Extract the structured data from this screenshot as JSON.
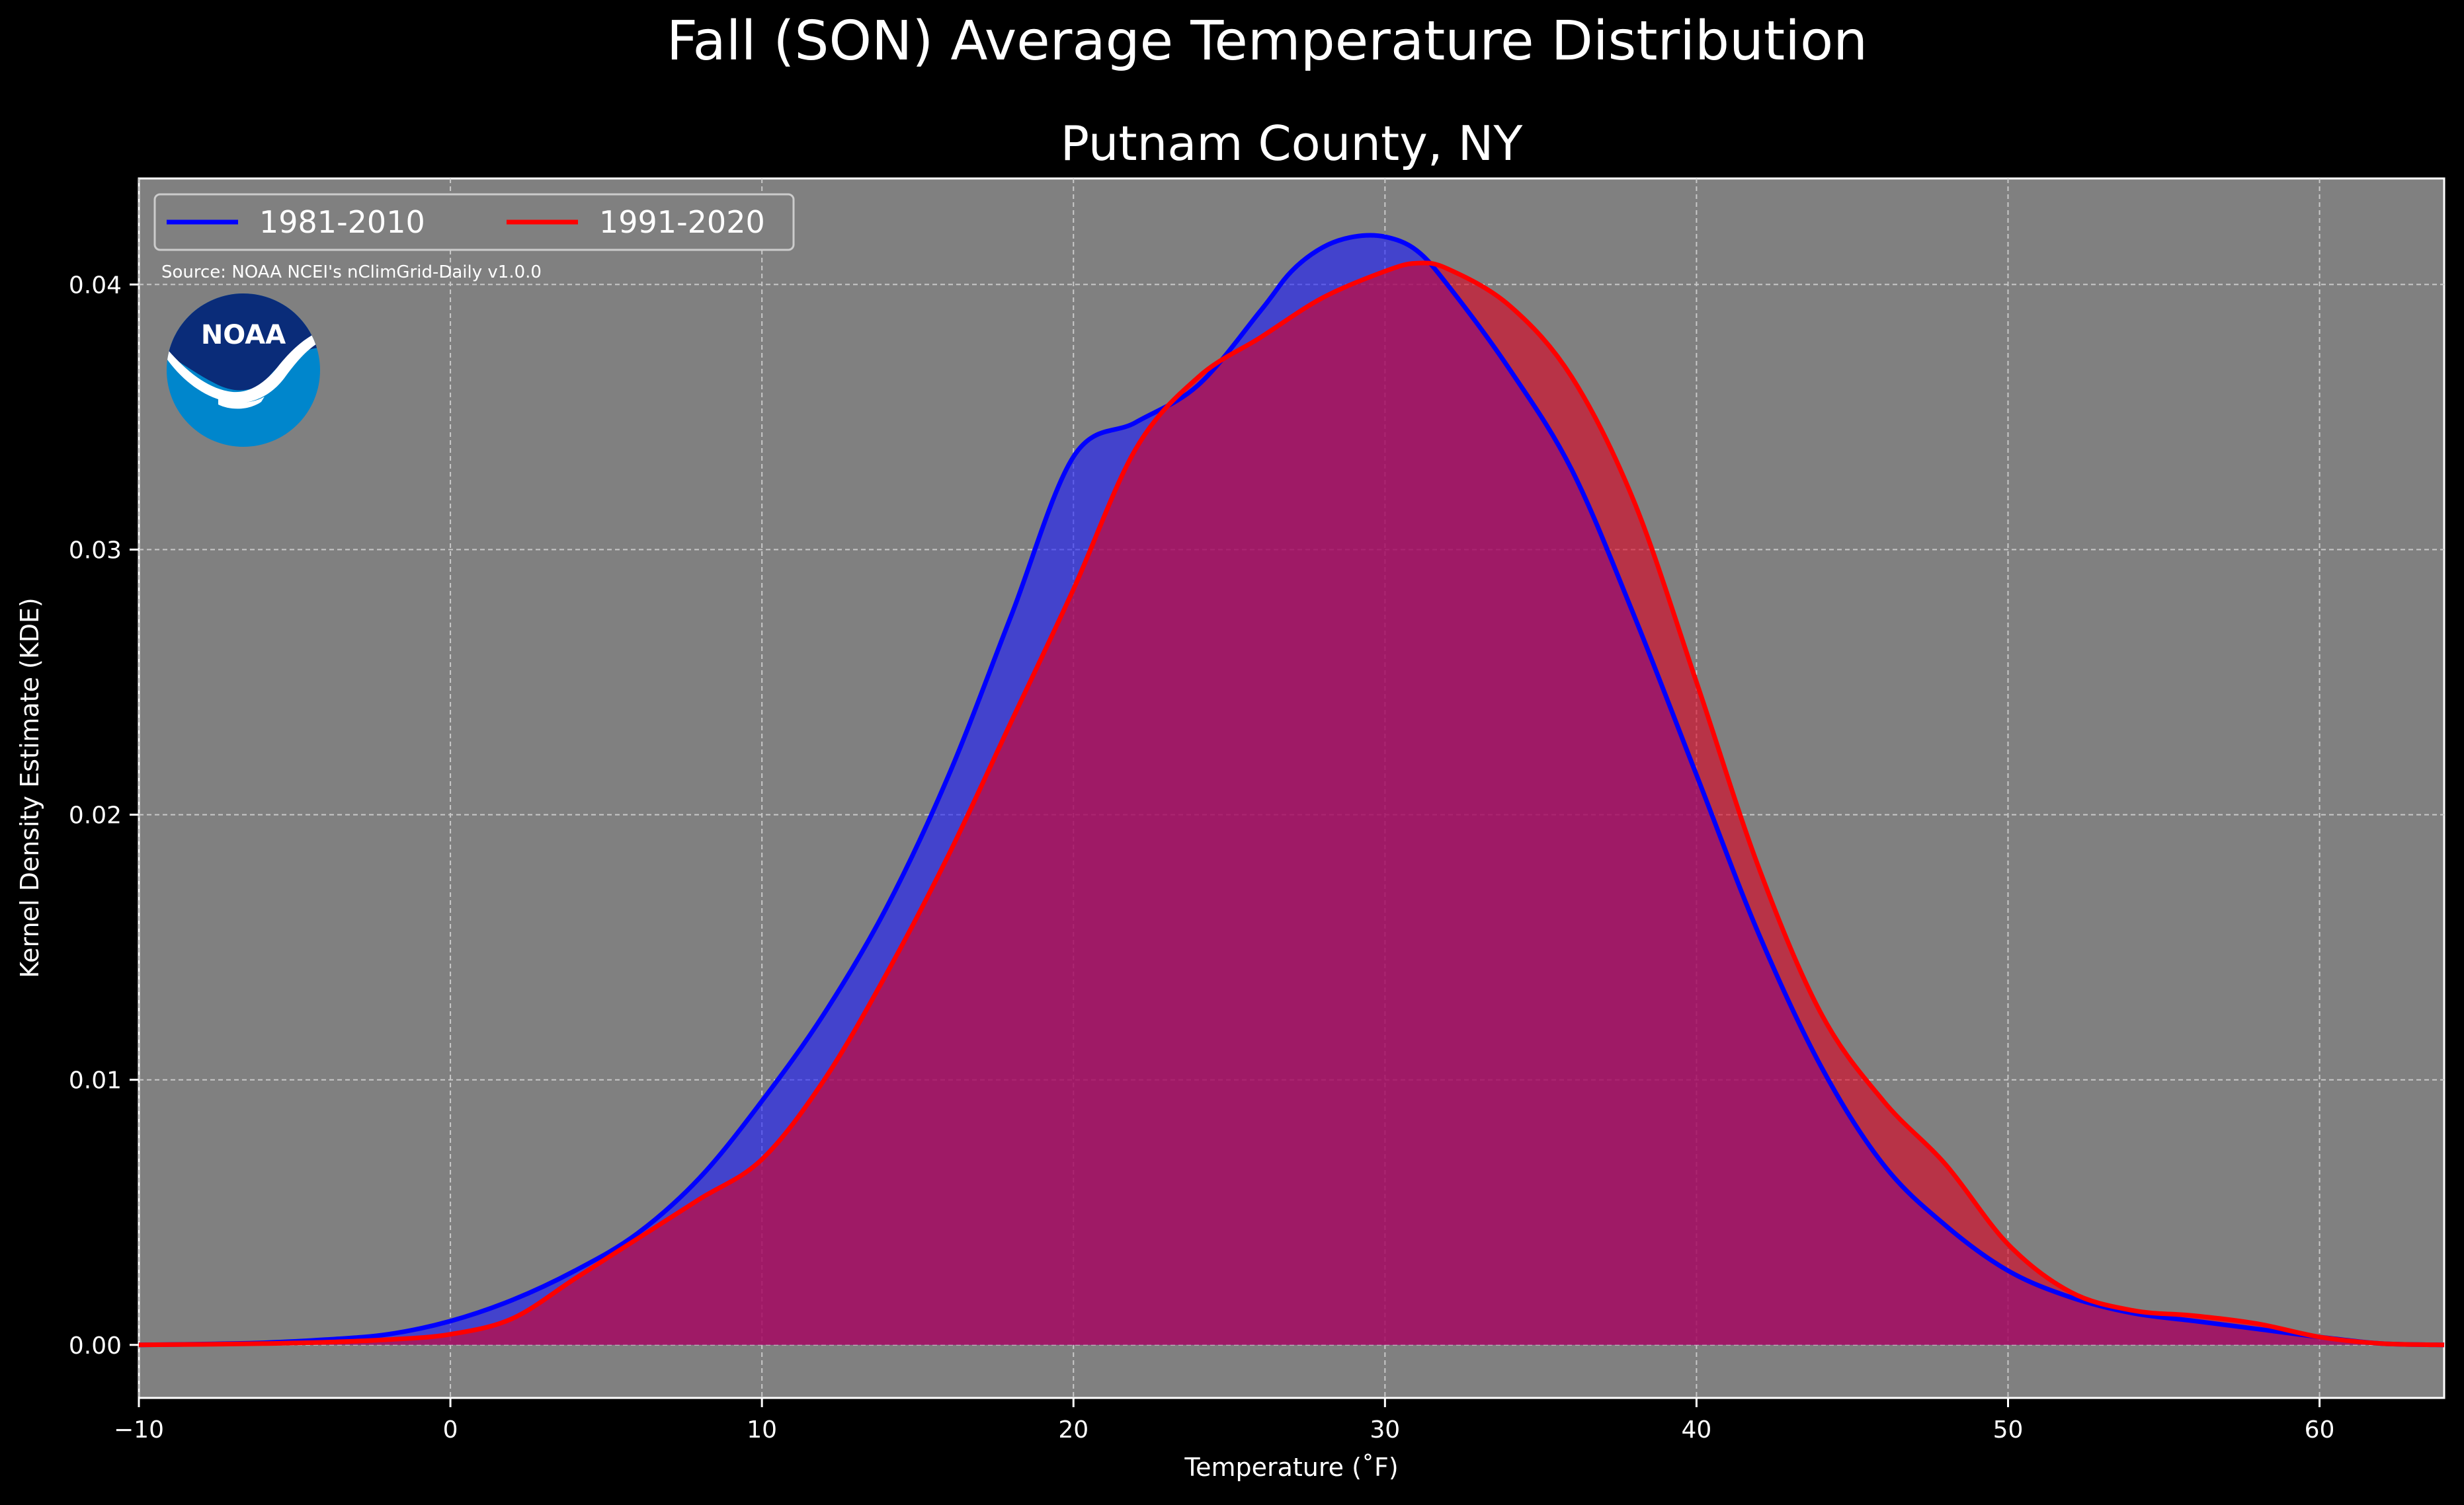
{
  "chart_data": {
    "type": "area",
    "title": "Fall (SON) Average Temperature Distribution",
    "subtitle": "Putnam County, NY",
    "xlabel": "Temperature ($^\\circ$F)",
    "xlabel_display": "Temperature (˚F)",
    "ylabel": "Kernel Density Estimate (KDE)",
    "xlim": [
      -10,
      64
    ],
    "ylim": [
      -0.002,
      0.044
    ],
    "x_ticks": [
      -10,
      0,
      10,
      20,
      30,
      40,
      50,
      60
    ],
    "x_tick_labels": [
      "−10",
      "0",
      "10",
      "20",
      "30",
      "40",
      "50",
      "60"
    ],
    "y_ticks": [
      0.0,
      0.01,
      0.02,
      0.03,
      0.04
    ],
    "y_tick_labels": [
      "0.00",
      "0.01",
      "0.02",
      "0.03",
      "0.04"
    ],
    "grid": true,
    "legend_position": "top-left",
    "annotation": "Source: NOAA NCEI's nClimGrid-Daily v1.0.0",
    "logo_text": "NOAA",
    "series": [
      {
        "name": "1981-2010",
        "color": "#0000ff",
        "fill": "#1a1aff",
        "x": [
          -10,
          -8,
          -6,
          -4,
          -2,
          0,
          2,
          4,
          6,
          8,
          10,
          12,
          14,
          16,
          18,
          20,
          22,
          24,
          26,
          27,
          28,
          29,
          30,
          31,
          32,
          34,
          36,
          38,
          40,
          42,
          44,
          46,
          48,
          50,
          52,
          54,
          56,
          58,
          60,
          62,
          64
        ],
        "y": [
          0.0,
          3e-05,
          8e-05,
          0.0002,
          0.0004,
          0.0009,
          0.0017,
          0.0028,
          0.0042,
          0.0063,
          0.0092,
          0.0125,
          0.0165,
          0.0215,
          0.0275,
          0.0335,
          0.0348,
          0.0362,
          0.039,
          0.0405,
          0.0414,
          0.0418,
          0.0418,
          0.0413,
          0.04,
          0.0368,
          0.033,
          0.0275,
          0.0215,
          0.0155,
          0.0105,
          0.0068,
          0.0045,
          0.0028,
          0.0018,
          0.0012,
          0.0009,
          0.0006,
          0.0003,
          5e-05,
          0.0
        ]
      },
      {
        "name": "1991-2020",
        "color": "#ff0000",
        "fill": "#dd0022",
        "x": [
          -10,
          -8,
          -6,
          -4,
          -2,
          0,
          2,
          4,
          6,
          8,
          10,
          12,
          14,
          16,
          18,
          20,
          22,
          24,
          26,
          28,
          30,
          31,
          32,
          34,
          36,
          38,
          40,
          42,
          44,
          46,
          48,
          50,
          52,
          54,
          56,
          58,
          60,
          62,
          64
        ],
        "y": [
          0.0,
          2e-05,
          5e-05,
          0.0001,
          0.0002,
          0.0004,
          0.001,
          0.0025,
          0.004,
          0.0055,
          0.007,
          0.01,
          0.014,
          0.0185,
          0.0235,
          0.0285,
          0.0338,
          0.0365,
          0.038,
          0.0395,
          0.0405,
          0.0408,
          0.0406,
          0.0392,
          0.0365,
          0.0318,
          0.025,
          0.018,
          0.0125,
          0.0092,
          0.0068,
          0.0038,
          0.002,
          0.0013,
          0.0011,
          0.0008,
          0.0003,
          5e-05,
          0.0
        ]
      }
    ]
  }
}
